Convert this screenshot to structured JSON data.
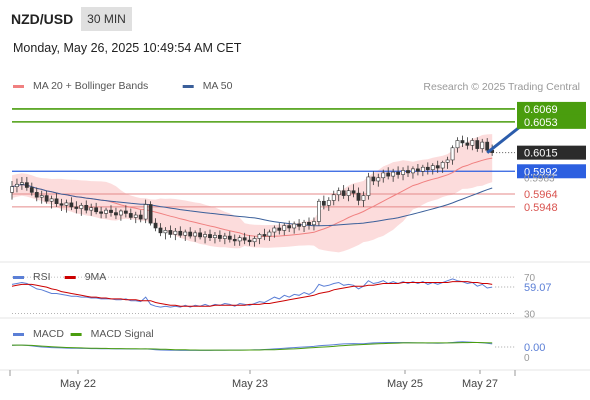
{
  "header": {
    "symbol": "NZD/USD",
    "interval": "30 MIN",
    "datetime": "Monday, May 26, 2025 10:49:54 AM CET"
  },
  "chart_data": [
    {
      "type": "candlestick",
      "panel": "price",
      "legend": [
        {
          "label": "MA 20 + Bollinger Bands",
          "color": "#f08080"
        },
        {
          "label": "MA 50",
          "color": "#3a5f9a"
        }
      ],
      "legend_placement": "top-left",
      "watermark": "Research © 2025 Trading Central",
      "x_ticks": [
        "May 22",
        "May 23",
        "May 25",
        "May 27"
      ],
      "ylim": [
        0.588,
        0.608
      ],
      "last_price": 0.6015,
      "candles": [
        [
          0.5966,
          0.598,
          0.5957,
          0.5973
        ],
        [
          0.5973,
          0.5983,
          0.5966,
          0.5976
        ],
        [
          0.5976,
          0.5985,
          0.5969,
          0.5978
        ],
        [
          0.5978,
          0.5985,
          0.5968,
          0.5972
        ],
        [
          0.5972,
          0.5978,
          0.5962,
          0.5966
        ],
        [
          0.5966,
          0.5972,
          0.5955,
          0.596
        ],
        [
          0.596,
          0.5968,
          0.5952,
          0.5962
        ],
        [
          0.5962,
          0.5968,
          0.5952,
          0.5955
        ],
        [
          0.5955,
          0.5962,
          0.5946,
          0.5958
        ],
        [
          0.5958,
          0.5965,
          0.5948,
          0.5952
        ],
        [
          0.5952,
          0.5958,
          0.5943,
          0.595
        ],
        [
          0.595,
          0.5957,
          0.5941,
          0.5953
        ],
        [
          0.5953,
          0.596,
          0.5944,
          0.5948
        ],
        [
          0.5948,
          0.5955,
          0.594,
          0.5946
        ],
        [
          0.5946,
          0.5953,
          0.5937,
          0.595
        ],
        [
          0.595,
          0.5956,
          0.594,
          0.5944
        ],
        [
          0.5944,
          0.5952,
          0.5937,
          0.5947
        ],
        [
          0.5947,
          0.5953,
          0.5939,
          0.5942
        ],
        [
          0.5942,
          0.5948,
          0.5934,
          0.594
        ],
        [
          0.594,
          0.5947,
          0.5934,
          0.5944
        ],
        [
          0.5944,
          0.595,
          0.5936,
          0.5941
        ],
        [
          0.5941,
          0.5947,
          0.5933,
          0.5938
        ],
        [
          0.5938,
          0.5945,
          0.5931,
          0.5943
        ],
        [
          0.5943,
          0.595,
          0.5935,
          0.594
        ],
        [
          0.594,
          0.5946,
          0.5932,
          0.5935
        ],
        [
          0.5935,
          0.5942,
          0.5928,
          0.5938
        ],
        [
          0.5938,
          0.5944,
          0.5929,
          0.5933
        ],
        [
          0.5933,
          0.5957,
          0.5928,
          0.5951
        ],
        [
          0.5951,
          0.5955,
          0.5925,
          0.5928
        ],
        [
          0.5928,
          0.5934,
          0.5918,
          0.5922
        ],
        [
          0.5922,
          0.5928,
          0.5912,
          0.5916
        ],
        [
          0.5916,
          0.5923,
          0.5908,
          0.5919
        ],
        [
          0.5919,
          0.5925,
          0.591,
          0.5914
        ],
        [
          0.5914,
          0.5922,
          0.5907,
          0.5918
        ],
        [
          0.5918,
          0.5924,
          0.591,
          0.5913
        ],
        [
          0.5913,
          0.592,
          0.5906,
          0.5917
        ],
        [
          0.5917,
          0.5923,
          0.5909,
          0.5912
        ],
        [
          0.5912,
          0.5919,
          0.5905,
          0.5916
        ],
        [
          0.5916,
          0.5922,
          0.5908,
          0.5911
        ],
        [
          0.5911,
          0.5918,
          0.5903,
          0.5914
        ],
        [
          0.5914,
          0.592,
          0.5906,
          0.591
        ],
        [
          0.591,
          0.5917,
          0.5903,
          0.5913
        ],
        [
          0.5913,
          0.5919,
          0.5905,
          0.5909
        ],
        [
          0.5909,
          0.5916,
          0.5902,
          0.5912
        ],
        [
          0.5912,
          0.5918,
          0.5904,
          0.5908
        ],
        [
          0.5908,
          0.5914,
          0.59,
          0.5906
        ],
        [
          0.5906,
          0.5913,
          0.59,
          0.591
        ],
        [
          0.591,
          0.5916,
          0.5902,
          0.5907
        ],
        [
          0.5907,
          0.5913,
          0.59,
          0.5905
        ],
        [
          0.5905,
          0.5912,
          0.5899,
          0.5909
        ],
        [
          0.5909,
          0.5916,
          0.5902,
          0.5914
        ],
        [
          0.5914,
          0.5921,
          0.5907,
          0.5912
        ],
        [
          0.5912,
          0.592,
          0.5906,
          0.5917
        ],
        [
          0.5917,
          0.5925,
          0.591,
          0.5922
        ],
        [
          0.5922,
          0.5928,
          0.5914,
          0.5919
        ],
        [
          0.5919,
          0.5928,
          0.5913,
          0.5925
        ],
        [
          0.5925,
          0.5931,
          0.5917,
          0.5922
        ],
        [
          0.5922,
          0.593,
          0.5915,
          0.5927
        ],
        [
          0.5927,
          0.5933,
          0.5919,
          0.5924
        ],
        [
          0.5924,
          0.5932,
          0.5917,
          0.5929
        ],
        [
          0.5929,
          0.5935,
          0.592,
          0.5926
        ],
        [
          0.5926,
          0.5935,
          0.5919,
          0.593
        ],
        [
          0.593,
          0.5958,
          0.5925,
          0.5955
        ],
        [
          0.5955,
          0.5962,
          0.5945,
          0.595
        ],
        [
          0.595,
          0.596,
          0.5943,
          0.5956
        ],
        [
          0.5956,
          0.5968,
          0.595,
          0.5963
        ],
        [
          0.5963,
          0.5972,
          0.5955,
          0.5968
        ],
        [
          0.5968,
          0.5975,
          0.5958,
          0.5962
        ],
        [
          0.5962,
          0.5972,
          0.5955,
          0.5968
        ],
        [
          0.5968,
          0.5976,
          0.596,
          0.5965
        ],
        [
          0.5965,
          0.5972,
          0.595,
          0.5956
        ],
        [
          0.5956,
          0.5967,
          0.5948,
          0.5962
        ],
        [
          0.5962,
          0.599,
          0.5957,
          0.5985
        ],
        [
          0.5985,
          0.5992,
          0.5975,
          0.598
        ],
        [
          0.598,
          0.5989,
          0.5973,
          0.5984
        ],
        [
          0.5984,
          0.5994,
          0.5978,
          0.599
        ],
        [
          0.599,
          0.5997,
          0.5982,
          0.5986
        ],
        [
          0.5986,
          0.5995,
          0.5979,
          0.5991
        ],
        [
          0.5991,
          0.5998,
          0.5983,
          0.5988
        ],
        [
          0.5988,
          0.5997,
          0.5981,
          0.5993
        ],
        [
          0.5993,
          0.5999,
          0.5985,
          0.599
        ],
        [
          0.599,
          0.5998,
          0.5983,
          0.5995
        ],
        [
          0.5995,
          0.6001,
          0.5987,
          0.5992
        ],
        [
          0.5992,
          0.6,
          0.5986,
          0.5997
        ],
        [
          0.5997,
          0.6003,
          0.5988,
          0.5994
        ],
        [
          0.5994,
          0.6002,
          0.5988,
          0.5999
        ],
        [
          0.5999,
          0.6005,
          0.599,
          0.5996
        ],
        [
          0.5996,
          0.6005,
          0.599,
          0.6003
        ],
        [
          0.6003,
          0.601,
          0.5995,
          0.6006
        ],
        [
          0.6006,
          0.6024,
          0.6,
          0.6021
        ],
        [
          0.6021,
          0.6034,
          0.6015,
          0.603
        ],
        [
          0.603,
          0.6036,
          0.6022,
          0.6027
        ],
        [
          0.6027,
          0.6034,
          0.6019,
          0.6024
        ],
        [
          0.6024,
          0.6033,
          0.6018,
          0.603
        ],
        [
          0.603,
          0.6034,
          0.6016,
          0.602
        ],
        [
          0.602,
          0.6032,
          0.6015,
          0.6028
        ],
        [
          0.6028,
          0.6033,
          0.6015,
          0.6018
        ],
        [
          0.6018,
          0.6025,
          0.6011,
          0.6015
        ]
      ],
      "horizontal_levels": [
        {
          "value": 0.6069,
          "label": "0.6069",
          "role": "target",
          "color": "#4a9d0e"
        },
        {
          "value": 0.6053,
          "label": "0.6053",
          "role": "target",
          "color": "#4a9d0e"
        },
        {
          "value": 0.6015,
          "label": "0.6015",
          "role": "last price",
          "color": "#333333"
        },
        {
          "value": 0.5992,
          "label": "0.5992",
          "role": "pivot",
          "color": "#2c5fe0"
        },
        {
          "value": 0.5964,
          "label": "0.5964",
          "role": "support",
          "color": "#d9534f"
        },
        {
          "value": 0.5948,
          "label": "0.5948",
          "role": "support",
          "color": "#d9534f"
        }
      ],
      "overlapped_tick_label": "0.5983",
      "arrow": {
        "from": [
          96,
          0.6015
        ],
        "to": [
          107,
          0.6069
        ],
        "color": "#2b5cab"
      }
    },
    {
      "type": "line",
      "panel": "rsi",
      "legend": [
        {
          "label": "RSI",
          "color": "#5b7fd6"
        },
        {
          "label": "9MA",
          "color": "#cc0000"
        }
      ],
      "ylim": [
        25,
        80
      ],
      "levels": [
        {
          "value": 70,
          "label": "70"
        },
        {
          "value": 30,
          "label": "30"
        }
      ],
      "last_value": 59.07,
      "last_label": "59.07",
      "series": [
        {
          "name": "RSI",
          "values": [
            62,
            63,
            64,
            63,
            60,
            57,
            56,
            54,
            52,
            52,
            51,
            50,
            49,
            49,
            48,
            48,
            47,
            47,
            46,
            46,
            46,
            45,
            45,
            46,
            44,
            44,
            43,
            48,
            40,
            38,
            37,
            38,
            37,
            38,
            37,
            39,
            37,
            39,
            38,
            40,
            38,
            40,
            39,
            41,
            40,
            38,
            41,
            40,
            39,
            41,
            43,
            42,
            45,
            48,
            46,
            50,
            48,
            51,
            50,
            53,
            51,
            54,
            62,
            60,
            61,
            63,
            64,
            61,
            62,
            61,
            57,
            60,
            66,
            63,
            64,
            66,
            63,
            65,
            63,
            65,
            63,
            65,
            63,
            65,
            62,
            64,
            62,
            64,
            66,
            68,
            66,
            65,
            63,
            64,
            60,
            62,
            58,
            59
          ]
        },
        {
          "name": "9MA",
          "values": [
            60,
            61,
            62,
            62,
            62,
            61,
            60,
            59,
            57,
            56,
            54,
            53,
            52,
            51,
            50,
            49,
            48,
            48,
            47,
            47,
            46,
            46,
            46,
            45,
            45,
            45,
            44,
            44,
            44,
            42,
            41,
            40,
            39,
            39,
            38,
            38,
            38,
            38,
            38,
            38,
            38,
            39,
            39,
            39,
            39,
            39,
            39,
            39,
            40,
            40,
            40,
            41,
            41,
            42,
            43,
            44,
            45,
            46,
            47,
            48,
            49,
            50,
            52,
            53,
            54,
            56,
            57,
            58,
            59,
            60,
            60,
            60,
            61,
            61,
            62,
            63,
            63,
            63,
            63,
            64,
            64,
            64,
            64,
            64,
            64,
            64,
            64,
            64,
            64,
            65,
            65,
            65,
            65,
            64,
            64,
            63,
            63,
            62
          ]
        }
      ]
    },
    {
      "type": "line",
      "panel": "macd",
      "legend": [
        {
          "label": "MACD",
          "color": "#5b7fd6"
        },
        {
          "label": "MACD Signal",
          "color": "#4a9d0e"
        }
      ],
      "ylim": [
        -0.0016,
        0.0016
      ],
      "ticks": [
        {
          "value": 0,
          "label": "0"
        }
      ],
      "last_value": 0.0,
      "last_label": "0.00",
      "series": [
        {
          "name": "MACD",
          "values": [
            0.0001,
            0.00012,
            0.00012,
            0.0001,
            7e-05,
            3e-05,
            0,
            -2e-05,
            -4e-05,
            -5e-05,
            -6e-05,
            -7e-05,
            -8e-05,
            -8e-05,
            -9e-05,
            -9e-05,
            -0.0001,
            -0.0001,
            -0.00011,
            -0.00011,
            -0.00011,
            -0.00012,
            -0.00012,
            -0.00012,
            -0.00013,
            -0.00013,
            -0.00013,
            -0.00012,
            -0.00015,
            -0.00017,
            -0.00019,
            -0.0002,
            -0.00021,
            -0.00021,
            -0.00022,
            -0.00022,
            -0.00022,
            -0.00022,
            -0.00022,
            -0.00022,
            -0.00022,
            -0.00021,
            -0.00021,
            -0.00021,
            -0.0002,
            -0.0002,
            -0.0002,
            -0.00019,
            -0.00019,
            -0.00018,
            -0.00017,
            -0.00016,
            -0.00014,
            -0.00012,
            -0.0001,
            -8e-05,
            -6e-05,
            -4e-05,
            -2e-05,
            0,
            2e-05,
            4e-05,
            8e-05,
            0.0001,
            0.00012,
            0.00015,
            0.00018,
            0.0002,
            0.00021,
            0.00022,
            0.00021,
            0.00021,
            0.00024,
            0.00026,
            0.00027,
            0.00028,
            0.00029,
            0.00029,
            0.00029,
            0.00028,
            0.00028,
            0.00027,
            0.00026,
            0.00026,
            0.00025,
            0.00025,
            0.00024,
            0.00025,
            0.00026,
            0.00029,
            0.00032,
            0.00033,
            0.00032,
            0.00031,
            0.00029,
            0.00027,
            0.00024,
            0.0002
          ]
        },
        {
          "name": "MACD Signal",
          "values": [
            0.00012,
            0.00012,
            0.00012,
            0.00011,
            0.0001,
            8e-05,
            6e-05,
            4e-05,
            2e-05,
            0,
            -2e-05,
            -3e-05,
            -4e-05,
            -5e-05,
            -6e-05,
            -7e-05,
            -8e-05,
            -8e-05,
            -9e-05,
            -9e-05,
            -0.0001,
            -0.0001,
            -0.0001,
            -0.00011,
            -0.00011,
            -0.00011,
            -0.00012,
            -0.00012,
            -0.00012,
            -0.00013,
            -0.00014,
            -0.00015,
            -0.00016,
            -0.00017,
            -0.00018,
            -0.00018,
            -0.00019,
            -0.00019,
            -0.0002,
            -0.0002,
            -0.0002,
            -0.0002,
            -0.0002,
            -0.0002,
            -0.0002,
            -0.0002,
            -0.0002,
            -0.0002,
            -0.00019,
            -0.00019,
            -0.00019,
            -0.00018,
            -0.00018,
            -0.00017,
            -0.00016,
            -0.00015,
            -0.00013,
            -0.00012,
            -0.0001,
            -8e-05,
            -6e-05,
            -4e-05,
            -2e-05,
            0,
            2e-05,
            4e-05,
            7e-05,
            9e-05,
            0.00011,
            0.00013,
            0.00015,
            0.00016,
            0.00018,
            0.00019,
            0.00021,
            0.00022,
            0.00023,
            0.00024,
            0.00025,
            0.00026,
            0.00026,
            0.00026,
            0.00026,
            0.00026,
            0.00026,
            0.00026,
            0.00026,
            0.00026,
            0.00026,
            0.00026,
            0.00027,
            0.00028,
            0.00028,
            0.00029,
            0.00029,
            0.00028,
            0.00027,
            0.00026
          ]
        }
      ]
    }
  ]
}
